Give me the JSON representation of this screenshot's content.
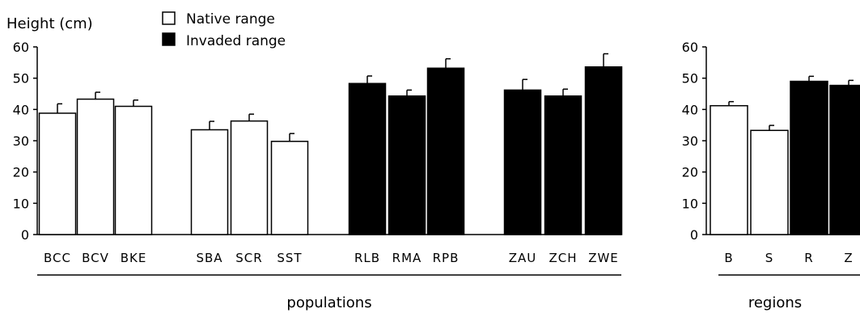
{
  "chart_data": [
    {
      "type": "bar",
      "ylabel": "Height (cm)",
      "xlabel": "populations",
      "ylim": [
        0,
        60
      ],
      "yticks": [
        0,
        10,
        20,
        30,
        40,
        50,
        60
      ],
      "groups": [
        {
          "range": "Native range",
          "categories": [
            "BCC",
            "BCV",
            "BKE"
          ],
          "values": [
            38.8,
            43.3,
            41.0
          ],
          "errors": [
            3.0,
            2.2,
            2.0
          ]
        },
        {
          "range": "Native range",
          "categories": [
            "SBA",
            "SCR",
            "SST"
          ],
          "values": [
            33.5,
            36.3,
            29.8
          ],
          "errors": [
            2.7,
            2.2,
            2.5
          ]
        },
        {
          "range": "Invaded range",
          "categories": [
            "RLB",
            "RMA",
            "RPB"
          ],
          "values": [
            48.3,
            44.3,
            53.2
          ],
          "errors": [
            2.4,
            1.9,
            3.0
          ]
        },
        {
          "range": "Invaded range",
          "categories": [
            "ZAU",
            "ZCH",
            "ZWE"
          ],
          "values": [
            46.2,
            44.3,
            53.6
          ],
          "errors": [
            3.4,
            2.2,
            4.2
          ]
        }
      ],
      "legend": [
        {
          "label": "Native range",
          "color": "#ffffff"
        },
        {
          "label": "Invaded range",
          "color": "#000000"
        }
      ]
    },
    {
      "type": "bar",
      "xlabel": "regions",
      "ylim": [
        0,
        60
      ],
      "yticks": [
        0,
        10,
        20,
        30,
        40,
        50,
        60
      ],
      "categories": [
        "B",
        "S",
        "R",
        "Z"
      ],
      "ranges": [
        "Native range",
        "Native range",
        "Invaded range",
        "Invaded range"
      ],
      "values": [
        41.2,
        33.3,
        49.0,
        47.7
      ],
      "errors": [
        1.3,
        1.6,
        1.6,
        1.6
      ]
    }
  ],
  "colors": {
    "native": "#ffffff",
    "invaded": "#000000",
    "stroke": "#000000"
  }
}
